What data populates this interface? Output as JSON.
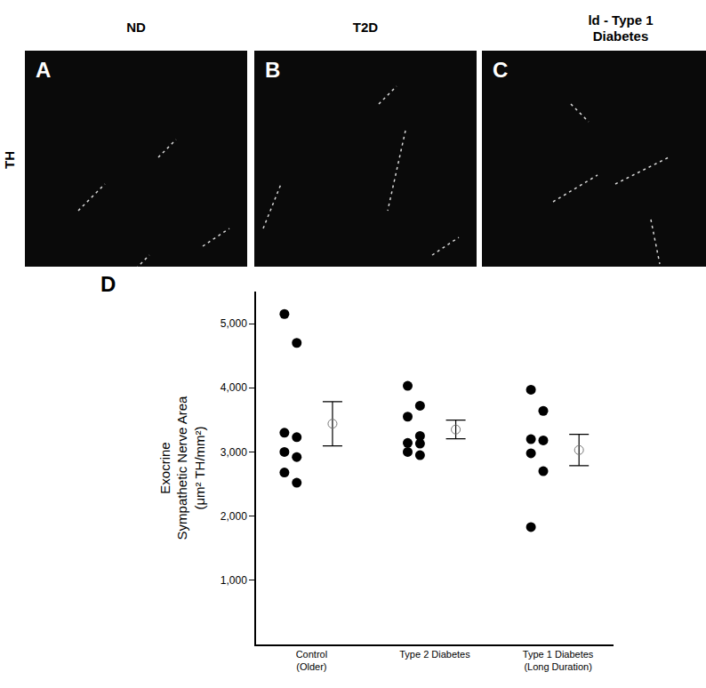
{
  "row_label": "TH",
  "panels": [
    {
      "letter": "A",
      "title": "ND"
    },
    {
      "letter": "B",
      "title": "T2D"
    },
    {
      "letter": "C",
      "title": "ld - Type 1 Diabetes"
    }
  ],
  "chart_data": {
    "type": "scatter",
    "panel_letter": "D",
    "y_label": [
      "Exocrine",
      "Sympathetic Nerve Area",
      "(μm² TH/mm²)"
    ],
    "categories": [
      "Control\n(Older)",
      "Type 2 Diabetes",
      "Type 1 Diabetes\n(Long Duration)"
    ],
    "groups": [
      {
        "values": [
          5150,
          4700,
          3300,
          3230,
          3000,
          2920,
          2680,
          2520
        ],
        "mean": 3440,
        "sem": 345
      },
      {
        "values": [
          4030,
          3720,
          3550,
          3250,
          3140,
          3130,
          3000,
          2950
        ],
        "mean": 3350,
        "sem": 145
      },
      {
        "values": [
          3970,
          3640,
          3200,
          3180,
          2980,
          2700,
          1830
        ],
        "mean": 3030,
        "sem": 245
      }
    ],
    "color": "#000000",
    "marker": "circle",
    "mean_marker": "circle-open",
    "ylim": [
      0,
      5500
    ],
    "yticks": [
      {
        "value": 1000,
        "label": "1,000"
      },
      {
        "value": 2000,
        "label": "2,000"
      },
      {
        "value": 3000,
        "label": "3,000"
      },
      {
        "value": 4000,
        "label": "4,000"
      },
      {
        "value": 5000,
        "label": "5,000"
      }
    ],
    "grid": false
  }
}
